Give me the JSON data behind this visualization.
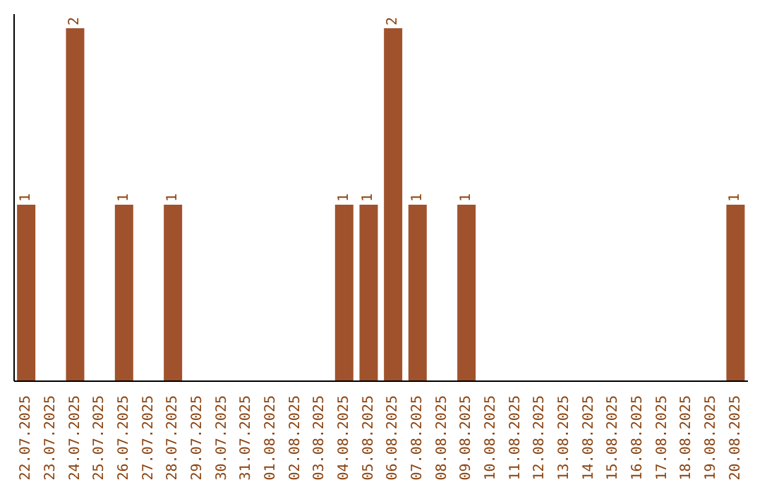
{
  "chart_data": {
    "type": "bar",
    "categories": [
      "22.07.2025",
      "23.07.2025",
      "24.07.2025",
      "25.07.2025",
      "26.07.2025",
      "27.07.2025",
      "28.07.2025",
      "29.07.2025",
      "30.07.2025",
      "31.07.2025",
      "01.08.2025",
      "02.08.2025",
      "03.08.2025",
      "04.08.2025",
      "05.08.2025",
      "06.08.2025",
      "07.08.2025",
      "08.08.2025",
      "09.08.2025",
      "10.08.2025",
      "11.08.2025",
      "12.08.2025",
      "13.08.2025",
      "14.08.2025",
      "15.08.2025",
      "16.08.2025",
      "17.08.2025",
      "18.08.2025",
      "19.08.2025",
      "20.08.2025"
    ],
    "values": [
      1,
      0,
      2,
      0,
      1,
      0,
      1,
      0,
      0,
      0,
      0,
      0,
      0,
      1,
      1,
      2,
      1,
      0,
      1,
      0,
      0,
      0,
      0,
      0,
      0,
      0,
      0,
      0,
      0,
      1
    ],
    "value_labels": [
      "1",
      null,
      "2",
      null,
      "1",
      null,
      "1",
      null,
      null,
      null,
      null,
      null,
      null,
      "1",
      "1",
      "2",
      "1",
      null,
      "1",
      null,
      null,
      null,
      null,
      null,
      null,
      null,
      null,
      null,
      null,
      "1"
    ],
    "color": "#a0522d"
  }
}
